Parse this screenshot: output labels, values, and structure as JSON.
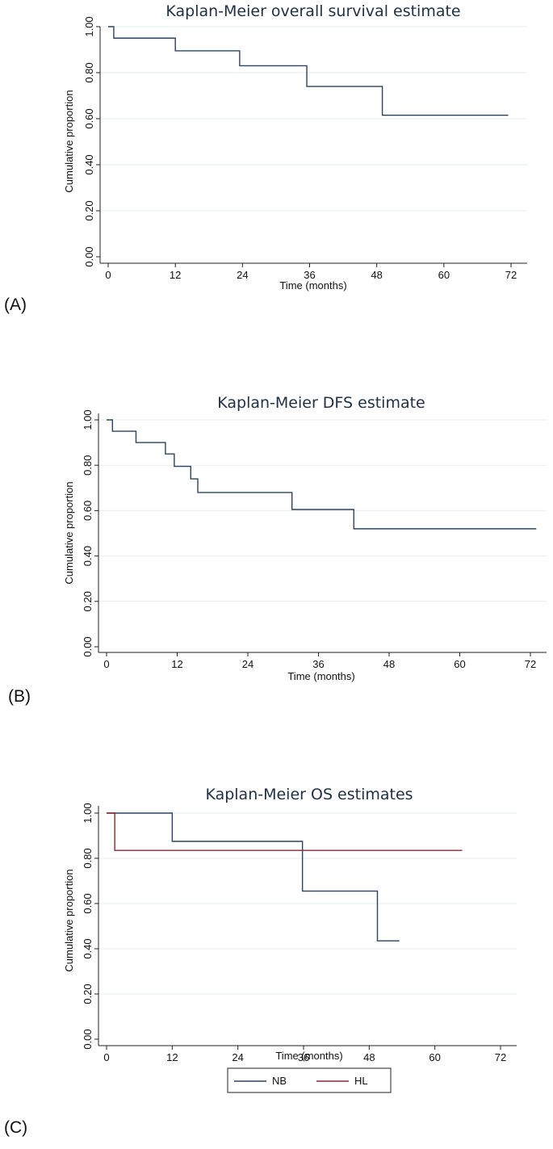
{
  "chart_data": [
    {
      "type": "line",
      "panel_label": "(A)",
      "title": "Kaplan-Meier overall survival estimate",
      "xlabel": "Time (months)",
      "ylabel": "Cumulative proportion",
      "xlim": [
        0,
        72
      ],
      "ylim": [
        0,
        1
      ],
      "x_ticks": [
        "0",
        "12",
        "24",
        "36",
        "48",
        "60",
        "72"
      ],
      "y_ticks": [
        "0.00",
        "0.20",
        "0.40",
        "0.60",
        "0.80",
        "1.00"
      ],
      "grid": true,
      "series": [
        {
          "color": "#2a4460",
          "step": true,
          "x": [
            0,
            1,
            12,
            23.5,
            35.5,
            49,
            71.5
          ],
          "y": [
            1.0,
            0.95,
            0.895,
            0.83,
            0.74,
            0.615,
            0.615
          ]
        }
      ]
    },
    {
      "type": "line",
      "panel_label": "(B)",
      "title": "Kaplan-Meier DFS estimate",
      "xlabel": "Time (months)",
      "ylabel": "Cumulative proportion",
      "xlim": [
        0,
        72
      ],
      "ylim": [
        0,
        1
      ],
      "x_ticks": [
        "0",
        "12",
        "24",
        "36",
        "48",
        "60",
        "72"
      ],
      "y_ticks": [
        "0.00",
        "0.20",
        "0.40",
        "0.60",
        "0.80",
        "1.00"
      ],
      "grid": true,
      "series": [
        {
          "color": "#2a4460",
          "step": true,
          "x": [
            0,
            1,
            5,
            10,
            11.5,
            14.3,
            15.5,
            31.5,
            42,
            73
          ],
          "y": [
            1.0,
            0.95,
            0.9,
            0.85,
            0.795,
            0.74,
            0.68,
            0.605,
            0.52,
            0.52
          ]
        }
      ]
    },
    {
      "type": "line",
      "panel_label": "(C)",
      "title": "Kaplan-Meier OS estimates",
      "xlabel": "Time (months)",
      "ylabel": "Cumulative proportion",
      "xlim": [
        0,
        72
      ],
      "ylim": [
        0,
        1
      ],
      "x_ticks": [
        "0",
        "12",
        "24",
        "36",
        "48",
        "60",
        "72"
      ],
      "y_ticks": [
        "0.00",
        "0.20",
        "0.40",
        "0.60",
        "0.80",
        "1.00"
      ],
      "grid": true,
      "legend_position": "bottom",
      "series": [
        {
          "name": "NB",
          "color": "#2a4460",
          "step": true,
          "x": [
            0,
            12,
            35.8,
            49.5,
            53.5
          ],
          "y": [
            1.0,
            0.875,
            0.655,
            0.435,
            0.435
          ]
        },
        {
          "name": "HL",
          "color": "#8b2a2f",
          "step": true,
          "x": [
            0,
            1.5,
            65
          ],
          "y": [
            1.0,
            0.835,
            0.835
          ]
        }
      ]
    }
  ]
}
